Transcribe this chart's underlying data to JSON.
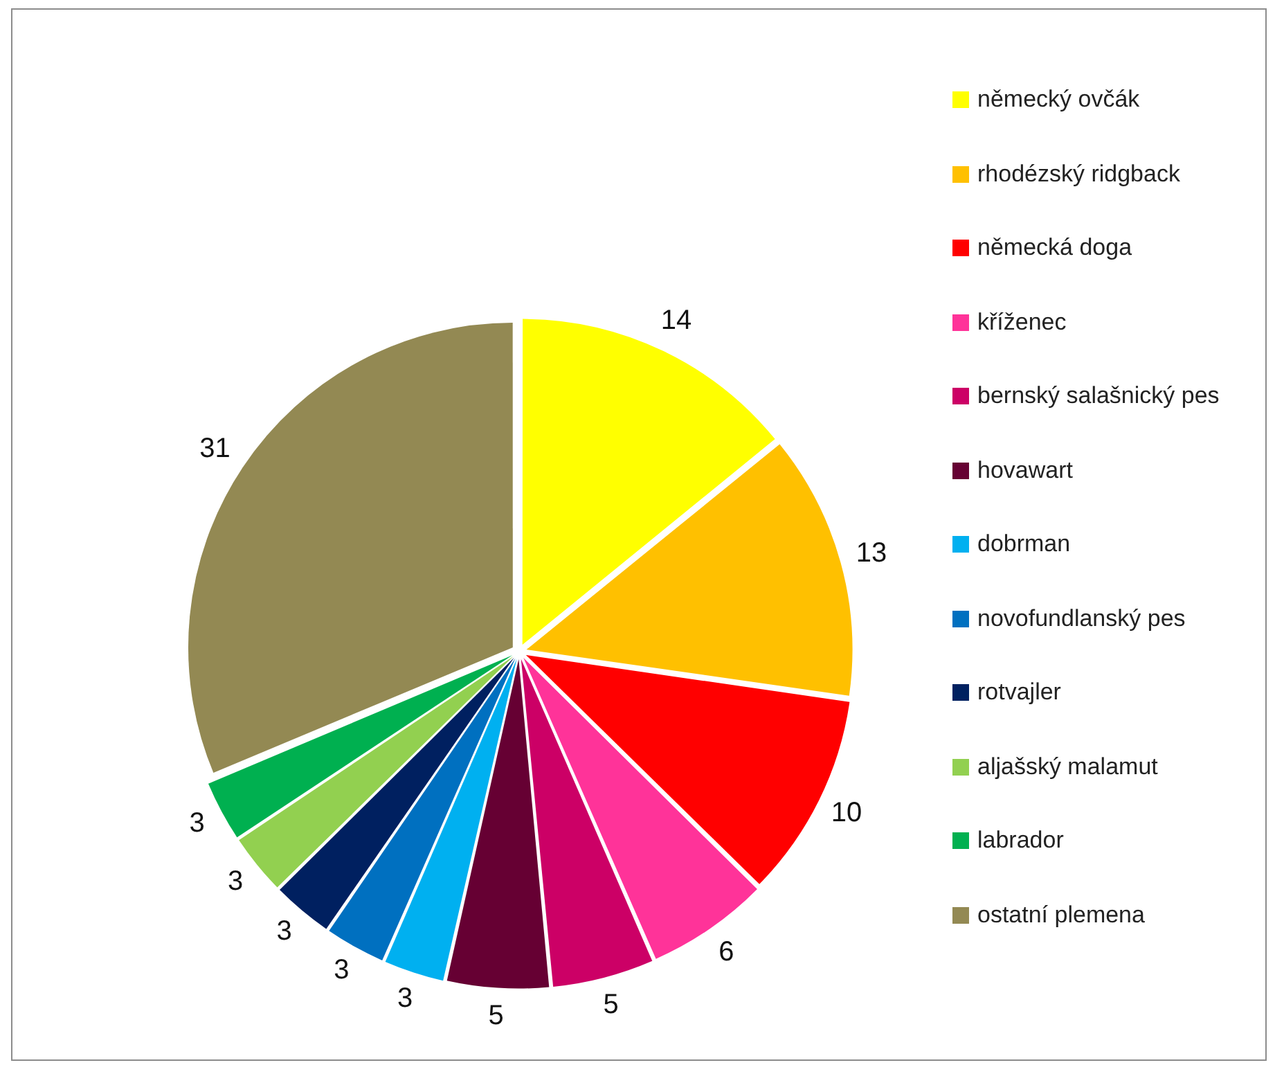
{
  "chart_data": {
    "type": "pie",
    "categories": [
      "německý ovčák",
      "rhodézský ridgback",
      "německá doga",
      "kříženec",
      "bernský salašnický pes",
      "hovawart",
      "dobrman",
      "novofundlanský pes",
      "rotvajler",
      "aljašský malamut",
      "labrador",
      "ostatní plemena"
    ],
    "values": [
      14,
      13,
      10,
      6,
      5,
      5,
      3,
      3,
      3,
      3,
      3,
      31
    ],
    "colors": [
      "#ffff00",
      "#ffc000",
      "#ff0000",
      "#ff3399",
      "#cc0066",
      "#660033",
      "#00b0f0",
      "#0070c0",
      "#002060",
      "#92d050",
      "#00b050",
      "#938953"
    ],
    "data_labels": true,
    "legend": "right"
  }
}
